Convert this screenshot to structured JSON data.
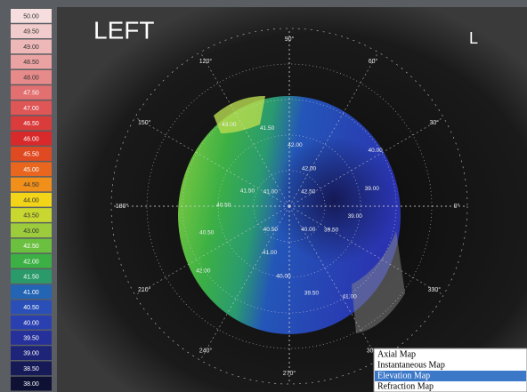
{
  "title": "LEFT",
  "eye": "L",
  "scale": [
    {
      "label": "50.00",
      "color": "#f6dede"
    },
    {
      "label": "49.50",
      "color": "#f2cccc"
    },
    {
      "label": "49.00",
      "color": "#eeb8b8"
    },
    {
      "label": "48.50",
      "color": "#eaa2a2"
    },
    {
      "label": "48.00",
      "color": "#e68a8a"
    },
    {
      "label": "47.50",
      "color": "#e27070"
    },
    {
      "label": "47.00",
      "color": "#de5656"
    },
    {
      "label": "46.50",
      "color": "#da3c3c"
    },
    {
      "label": "46.00",
      "color": "#d82a2a"
    },
    {
      "label": "45.50",
      "color": "#e04a22"
    },
    {
      "label": "45.00",
      "color": "#e8661e"
    },
    {
      "label": "44.50",
      "color": "#f0901a"
    },
    {
      "label": "44.00",
      "color": "#f2d418"
    },
    {
      "label": "43.50",
      "color": "#c8d830"
    },
    {
      "label": "43.00",
      "color": "#9ccc3c"
    },
    {
      "label": "42.50",
      "color": "#6cc040"
    },
    {
      "label": "42.00",
      "color": "#3cb044"
    },
    {
      "label": "41.50",
      "color": "#2a9a6a"
    },
    {
      "label": "41.00",
      "color": "#2464b4"
    },
    {
      "label": "40.50",
      "color": "#2a50b8"
    },
    {
      "label": "40.00",
      "color": "#2a40b0"
    },
    {
      "label": "39.50",
      "color": "#26309a"
    },
    {
      "label": "39.00",
      "color": "#1e2478"
    },
    {
      "label": "38.50",
      "color": "#161a56"
    },
    {
      "label": "38.00",
      "color": "#0e1034"
    }
  ],
  "angles": [
    "0°",
    "30°",
    "60°",
    "90°",
    "120°",
    "150°",
    "180°",
    "210°",
    "240°",
    "270°",
    "300°",
    "330°"
  ],
  "map_values": [
    "42.50",
    "41.00",
    "40.50",
    "40.00",
    "42.00",
    "41.50",
    "41.00",
    "39.50",
    "42.00",
    "40.50",
    "40.00",
    "39.00",
    "41.50",
    "40.50",
    "39.50",
    "39.00",
    "43.00",
    "42.00",
    "41.00",
    "40.00"
  ],
  "menu": {
    "items": [
      "Axial Map",
      "Instantaneous Map",
      "Elevation Map",
      "Refraction Map"
    ],
    "selected": 2
  }
}
